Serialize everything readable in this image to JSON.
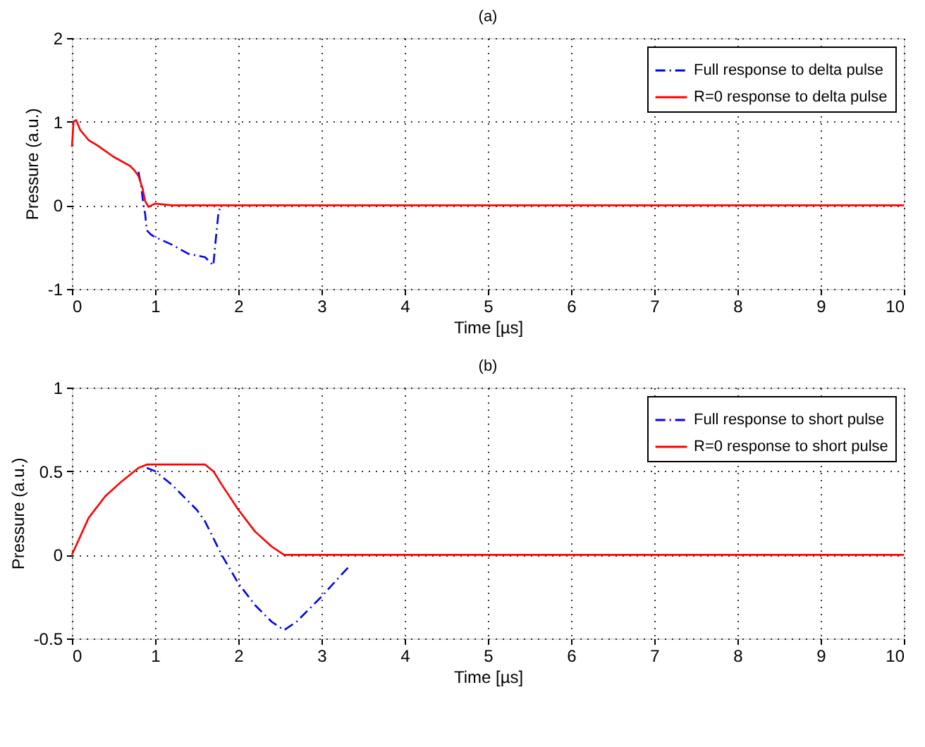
{
  "chart_data": [
    {
      "type": "line",
      "title": "(a)",
      "xlabel": "Time [µs]",
      "ylabel": "Pressure (a.u.)",
      "xlim": [
        0,
        10
      ],
      "ylim": [
        -1,
        2
      ],
      "xticks": [
        0,
        1,
        2,
        3,
        4,
        5,
        6,
        7,
        8,
        9,
        10
      ],
      "yticks": [
        -1,
        0,
        1,
        2
      ],
      "grid": true,
      "legend": "top right",
      "marker": "none",
      "series": [
        {
          "name": "Full response to delta pulse",
          "color": "#0000ff",
          "line_style": "dashed",
          "x": [
            0.8,
            0.83,
            0.86,
            0.88,
            0.9,
            0.95,
            1.0,
            1.2,
            1.4,
            1.6,
            1.7,
            1.72,
            1.76,
            1.78
          ],
          "values": [
            0.4,
            0.25,
            0.0,
            -0.1,
            -0.3,
            -0.35,
            -0.38,
            -0.47,
            -0.58,
            -0.62,
            -0.72,
            -0.5,
            -0.1,
            -0.03
          ]
        },
        {
          "name": "R=0 response to delta pulse",
          "color": "#ff0000",
          "line_style": "solid",
          "x": [
            0,
            0.02,
            0.05,
            0.1,
            0.2,
            0.3,
            0.5,
            0.7,
            0.75,
            0.8,
            0.85,
            0.88,
            0.92,
            1.0,
            1.1,
            1.2,
            10
          ],
          "values": [
            0.7,
            1.0,
            1.02,
            0.9,
            0.78,
            0.72,
            0.58,
            0.47,
            0.42,
            0.35,
            0.2,
            0.05,
            -0.02,
            0.02,
            0.01,
            0,
            0
          ]
        }
      ]
    },
    {
      "type": "line",
      "title": "(b)",
      "xlabel": "Time [µs]",
      "ylabel": "Pressure (a.u.)",
      "xlim": [
        0,
        10
      ],
      "ylim": [
        -0.5,
        1
      ],
      "xticks": [
        0,
        1,
        2,
        3,
        4,
        5,
        6,
        7,
        8,
        9,
        10
      ],
      "yticks": [
        -0.5,
        0,
        0.5,
        1
      ],
      "grid": true,
      "legend": "top right",
      "marker": "none",
      "series": [
        {
          "name": "Full response to short pulse",
          "color": "#0000ff",
          "line_style": "dashed",
          "x": [
            0.9,
            1.0,
            1.2,
            1.5,
            1.6,
            1.8,
            2.0,
            2.2,
            2.4,
            2.55,
            2.7,
            3.0,
            3.2,
            3.35
          ],
          "values": [
            0.52,
            0.5,
            0.42,
            0.27,
            0.2,
            0,
            -0.17,
            -0.3,
            -0.4,
            -0.45,
            -0.4,
            -0.25,
            -0.14,
            -0.06
          ]
        },
        {
          "name": "R=0 response to short pulse",
          "color": "#ff0000",
          "line_style": "solid",
          "x": [
            0,
            0.2,
            0.4,
            0.6,
            0.8,
            0.9,
            1.6,
            1.7,
            1.8,
            2.0,
            2.2,
            2.4,
            2.55,
            10
          ],
          "values": [
            0,
            0.22,
            0.35,
            0.44,
            0.52,
            0.54,
            0.54,
            0.5,
            0.42,
            0.27,
            0.14,
            0.05,
            0,
            0
          ]
        }
      ]
    }
  ]
}
